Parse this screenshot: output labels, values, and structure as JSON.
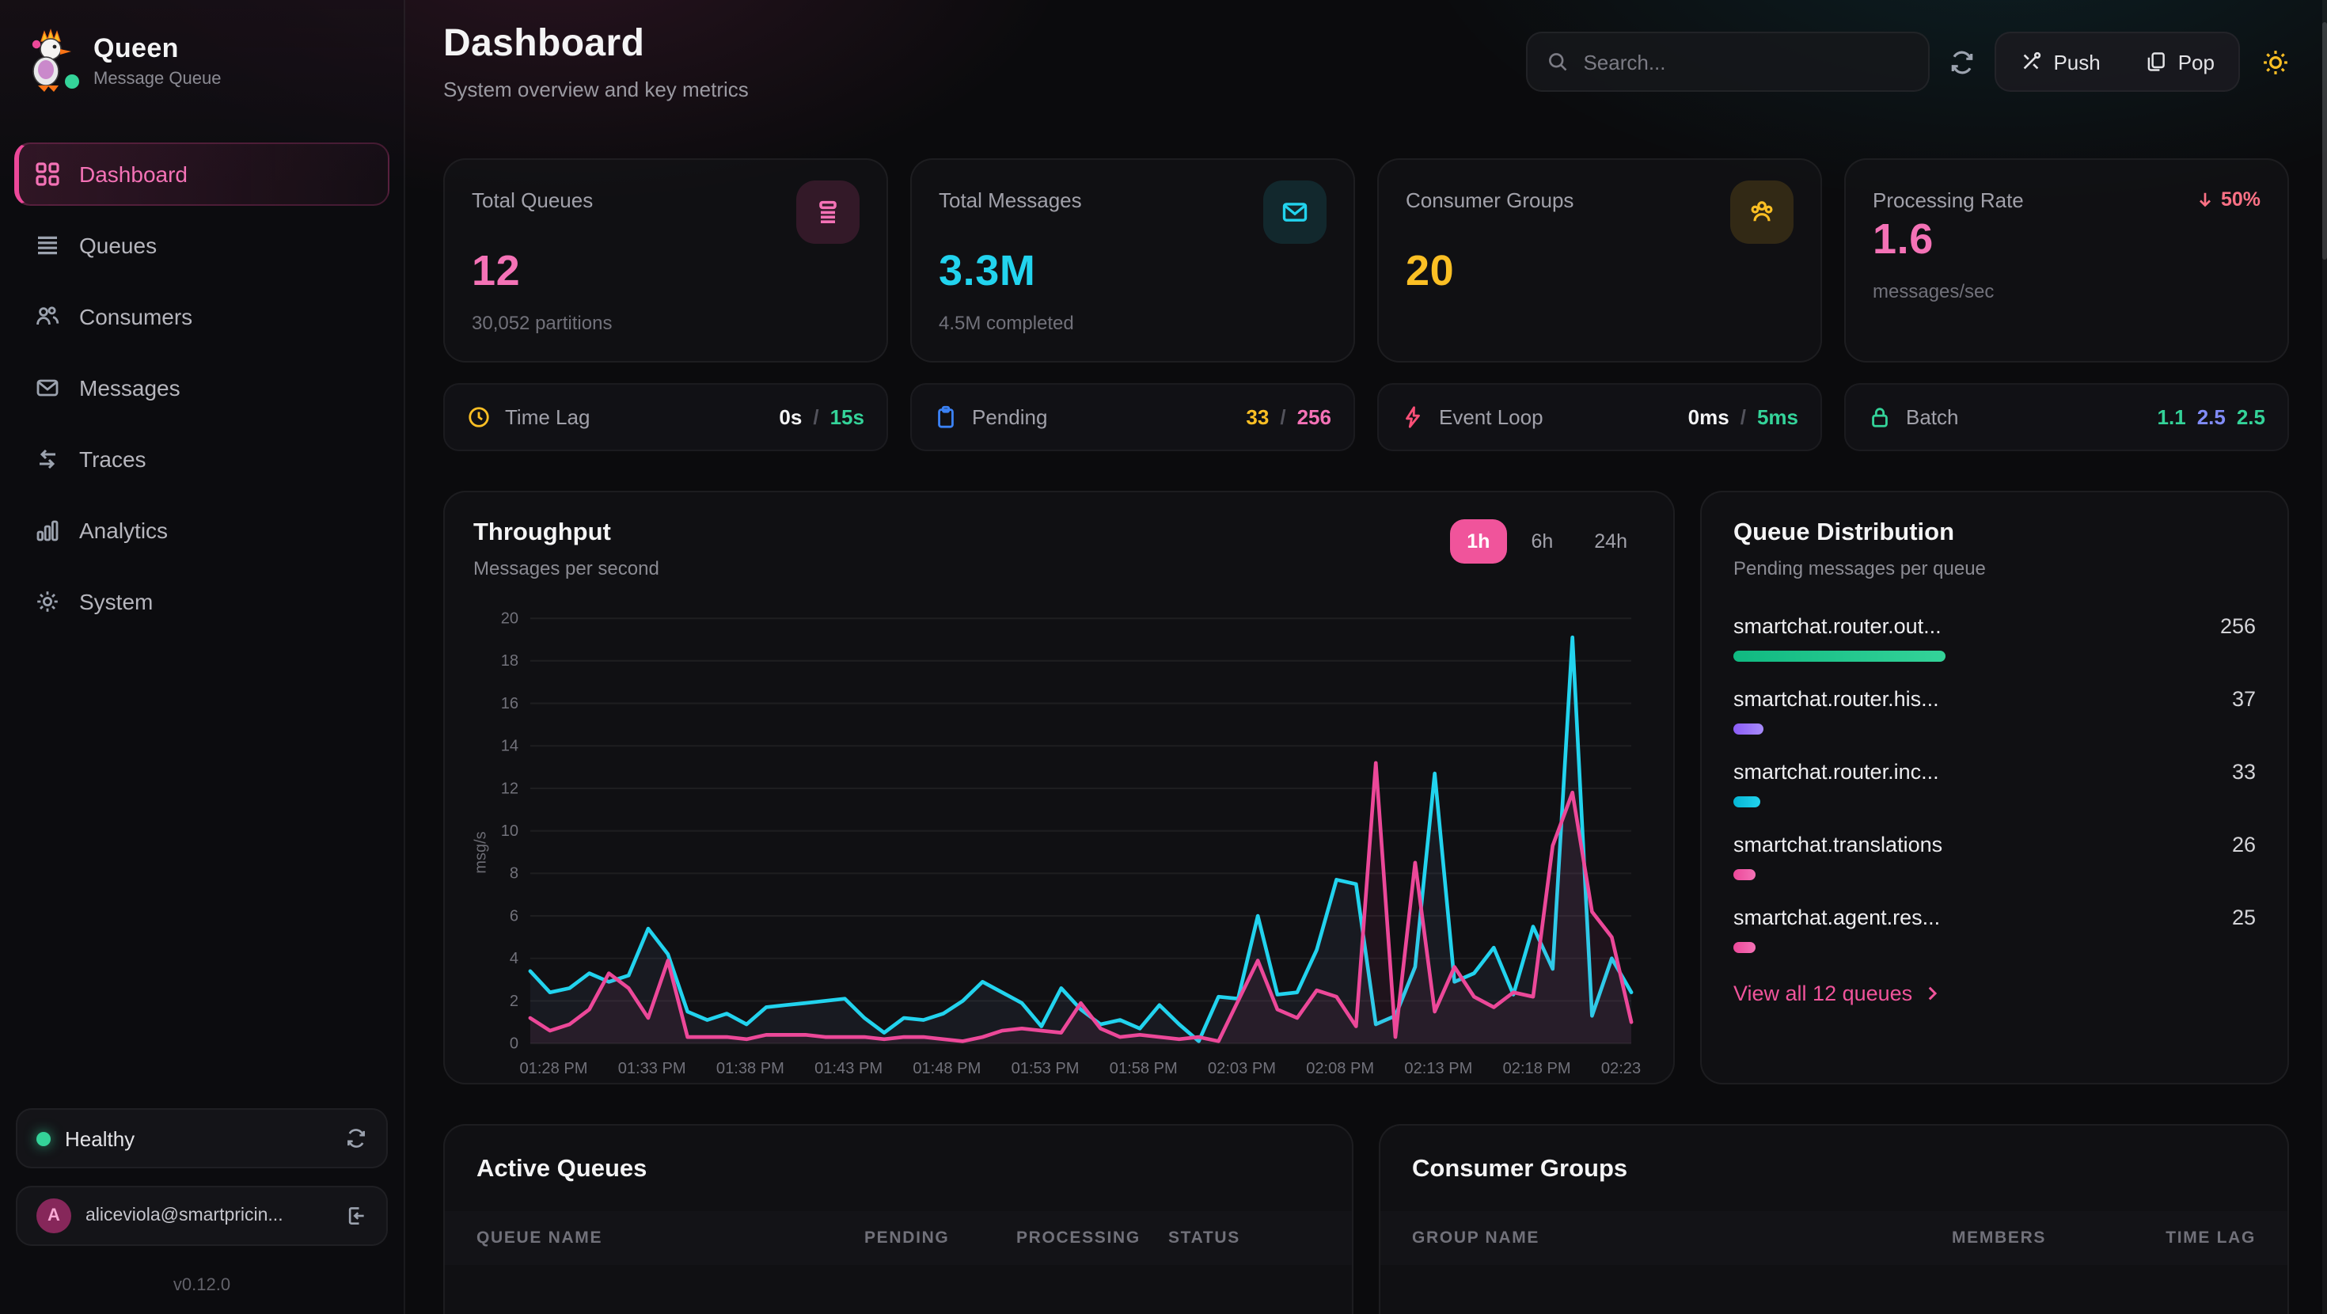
{
  "app": {
    "name": "Queen",
    "tagline": "Message Queue",
    "version": "v0.12.0"
  },
  "header": {
    "title": "Dashboard",
    "subtitle": "System overview and key metrics",
    "search_placeholder": "Search...",
    "push_label": "Push",
    "pop_label": "Pop"
  },
  "sidebar": {
    "items": [
      {
        "label": "Dashboard",
        "active": true
      },
      {
        "label": "Queues",
        "active": false
      },
      {
        "label": "Consumers",
        "active": false
      },
      {
        "label": "Messages",
        "active": false
      },
      {
        "label": "Traces",
        "active": false
      },
      {
        "label": "Analytics",
        "active": false
      },
      {
        "label": "System",
        "active": false
      }
    ],
    "health_status": "Healthy",
    "user": {
      "initial": "A",
      "email": "aliceviola@smartpricin..."
    }
  },
  "stats": [
    {
      "label": "Total Queues",
      "value": "12",
      "sub": "30,052 partitions",
      "accent": "#f472b6",
      "icon": "queue-stack-icon"
    },
    {
      "label": "Total Messages",
      "value": "3.3M",
      "sub": "4.5M completed",
      "accent": "#22d3ee",
      "icon": "envelope-icon"
    },
    {
      "label": "Consumer Groups",
      "value": "20",
      "sub": "",
      "accent": "#fbbf24",
      "icon": "users-icon"
    },
    {
      "label": "Processing Rate",
      "value": "1.6",
      "sub": "messages/sec",
      "accent": "#f472b6",
      "badge": "50%",
      "badge_color": "#fb7185"
    }
  ],
  "metrics": [
    {
      "label": "Time Lag",
      "icon_color": "#fbbf24",
      "parts": [
        {
          "text": "0s",
          "color": "#f4f4f5"
        },
        {
          "text": "/",
          "color": "#52525b"
        },
        {
          "text": "15s",
          "color": "#34d399"
        }
      ]
    },
    {
      "label": "Pending",
      "icon_color": "#3b82f6",
      "parts": [
        {
          "text": "33",
          "color": "#fbbf24"
        },
        {
          "text": "/",
          "color": "#52525b"
        },
        {
          "text": "256",
          "color": "#f472b6"
        }
      ]
    },
    {
      "label": "Event Loop",
      "icon_color": "#fb4f77",
      "parts": [
        {
          "text": "0ms",
          "color": "#f4f4f5"
        },
        {
          "text": "/",
          "color": "#52525b"
        },
        {
          "text": "5ms",
          "color": "#34d399"
        }
      ]
    },
    {
      "label": "Batch",
      "icon_color": "#34d399",
      "parts": [
        {
          "text": "1.1",
          "color": "#34d399"
        },
        {
          "text": "2.5",
          "color": "#818cf8"
        },
        {
          "text": "2.5",
          "color": "#34d399"
        }
      ]
    }
  ],
  "throughput": {
    "title": "Throughput",
    "subtitle": "Messages per second",
    "ranges": [
      "1h",
      "6h",
      "24h"
    ],
    "active_range": "1h"
  },
  "chart_data": {
    "type": "line",
    "title": "Throughput",
    "subtitle": "Messages per second",
    "ylabel": "msg/s",
    "ylim": [
      0,
      20
    ],
    "yticks": [
      0,
      2,
      4,
      6,
      8,
      10,
      12,
      14,
      16,
      18,
      20
    ],
    "grid": "horizontal",
    "legend": "none",
    "x_tick_labels": [
      "01:28 PM",
      "01:33 PM",
      "01:38 PM",
      "01:43 PM",
      "01:48 PM",
      "01:53 PM",
      "01:58 PM",
      "02:03 PM",
      "02:08 PM",
      "02:13 PM",
      "02:18 PM",
      "02:23 PM"
    ],
    "x_tick_indices": [
      0,
      5,
      10,
      15,
      20,
      25,
      30,
      35,
      40,
      45,
      50,
      55
    ],
    "series": [
      {
        "name": "cyan-series",
        "color": "#22d3ee",
        "values": [
          3.4,
          2.4,
          2.6,
          3.3,
          2.9,
          3.2,
          5.4,
          4.2,
          1.5,
          1.1,
          1.4,
          0.9,
          1.7,
          1.8,
          1.9,
          2.0,
          2.1,
          1.2,
          0.5,
          1.2,
          1.1,
          1.4,
          2.0,
          2.9,
          2.4,
          1.9,
          0.8,
          2.6,
          1.6,
          0.9,
          1.1,
          0.7,
          1.8,
          0.9,
          0.1,
          2.2,
          2.1,
          6.0,
          2.3,
          2.4,
          4.4,
          7.7,
          7.5,
          0.9,
          1.3,
          3.6,
          12.7,
          2.9,
          3.3,
          4.5,
          2.3,
          5.5,
          3.5,
          19.1,
          1.3,
          4.0,
          2.4
        ]
      },
      {
        "name": "pink-series",
        "color": "#ec4899",
        "values": [
          1.2,
          0.6,
          0.9,
          1.6,
          3.3,
          2.6,
          1.2,
          3.9,
          0.3,
          0.3,
          0.3,
          0.2,
          0.4,
          0.4,
          0.4,
          0.3,
          0.3,
          0.3,
          0.2,
          0.3,
          0.3,
          0.2,
          0.1,
          0.3,
          0.6,
          0.7,
          0.6,
          0.5,
          1.9,
          0.7,
          0.3,
          0.4,
          0.3,
          0.2,
          0.3,
          0.1,
          2.0,
          3.9,
          1.6,
          1.2,
          2.5,
          2.2,
          0.8,
          13.2,
          0.3,
          8.5,
          1.5,
          3.6,
          2.2,
          1.7,
          2.4,
          2.2,
          9.3,
          11.8,
          6.2,
          5.0,
          1.0
        ]
      }
    ]
  },
  "queue_distribution": {
    "title": "Queue Distribution",
    "subtitle": "Pending messages per queue",
    "items": [
      {
        "name": "smartchat.router.out...",
        "value": 256,
        "color": "#10b981",
        "color2": "#34d399"
      },
      {
        "name": "smartchat.router.his...",
        "value": 37,
        "color": "#8b5cf6",
        "color2": "#a78bfa"
      },
      {
        "name": "smartchat.router.inc...",
        "value": 33,
        "color": "#06b6d4",
        "color2": "#22d3ee"
      },
      {
        "name": "smartchat.translations",
        "value": 26,
        "color": "#ec4899",
        "color2": "#f472b6"
      },
      {
        "name": "smartchat.agent.res...",
        "value": 25,
        "color": "#ec4899",
        "color2": "#f472b6"
      }
    ],
    "link_label": "View all 12 queues"
  },
  "active_queues": {
    "title": "Active Queues",
    "columns": [
      "QUEUE NAME",
      "PENDING",
      "PROCESSING",
      "STATUS"
    ]
  },
  "consumer_groups": {
    "title": "Consumer Groups",
    "columns": [
      "GROUP NAME",
      "MEMBERS",
      "TIME LAG"
    ]
  }
}
